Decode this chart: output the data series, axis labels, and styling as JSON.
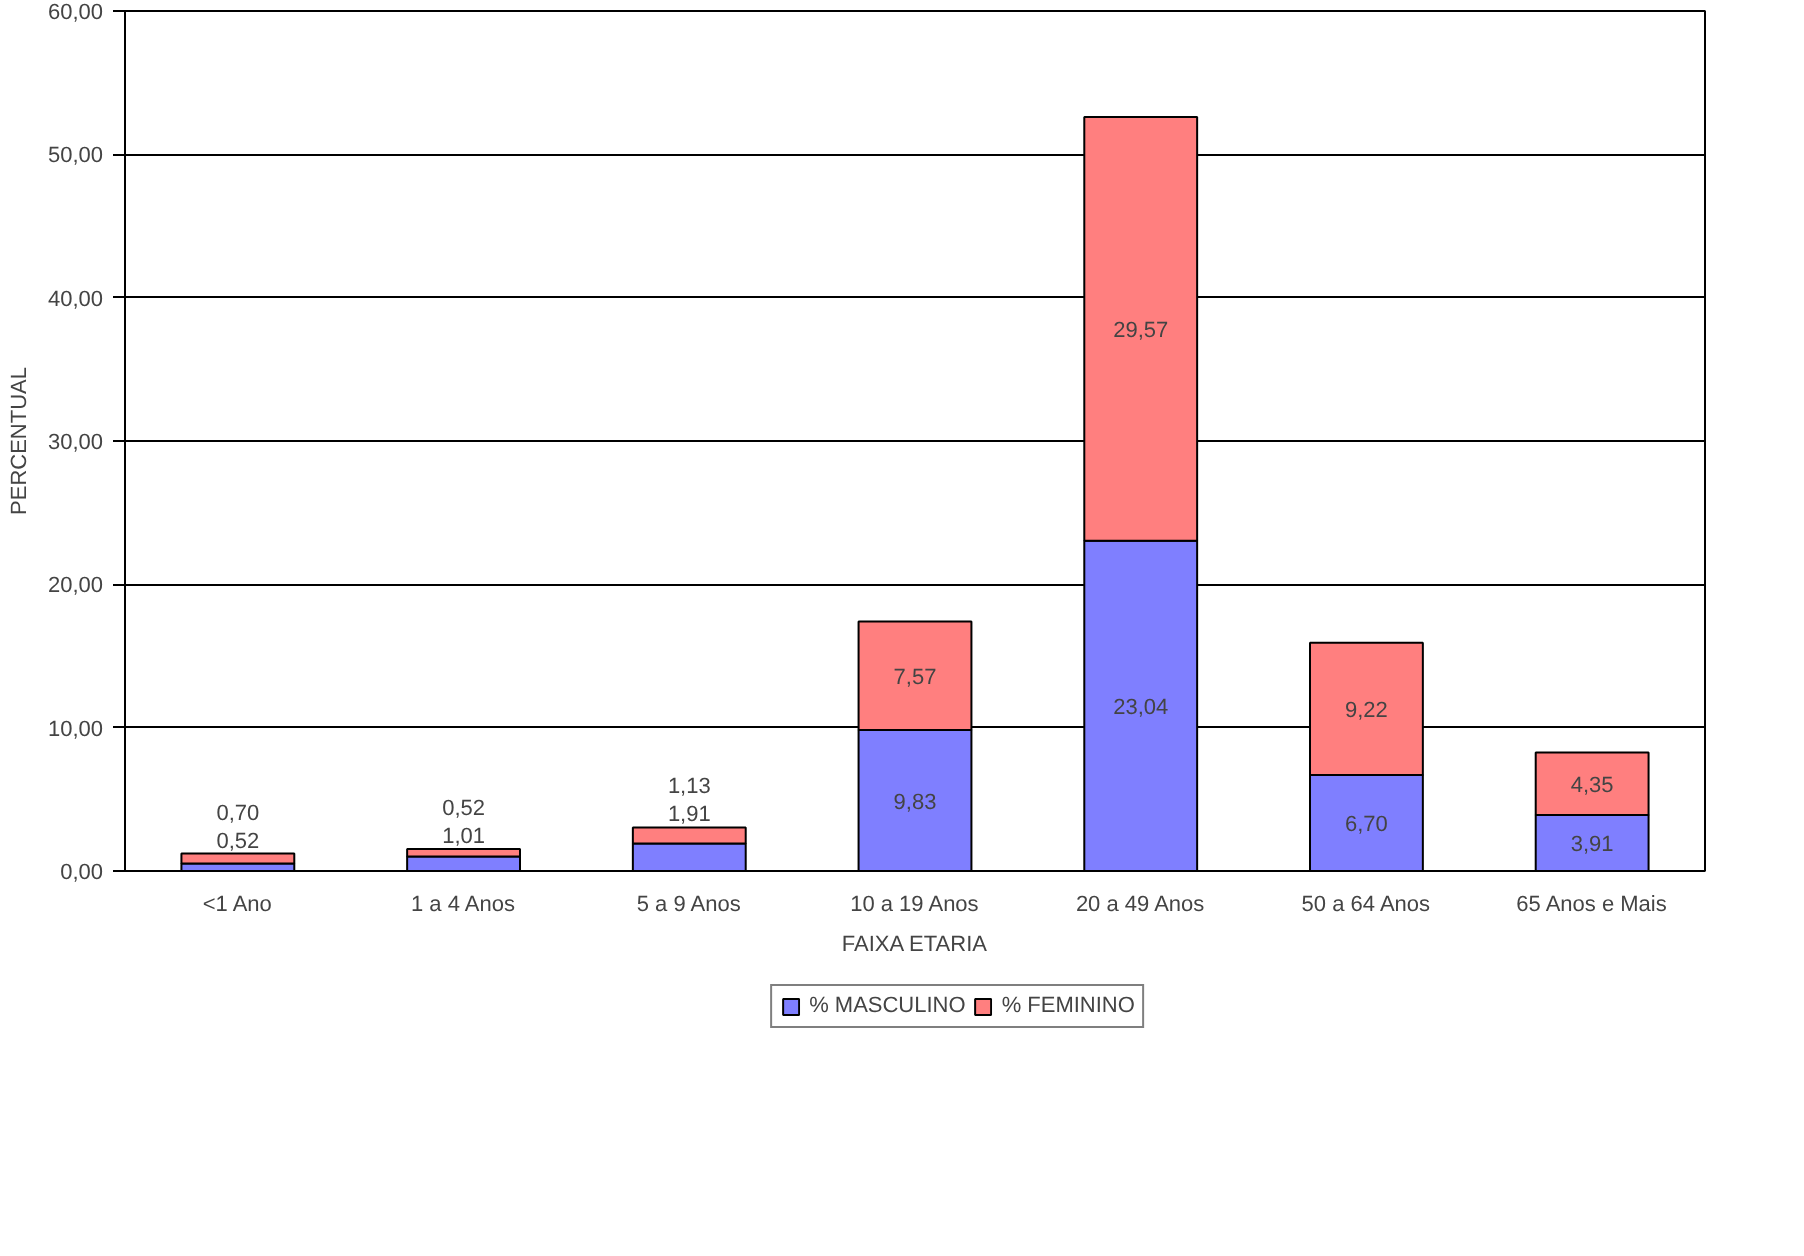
{
  "chart_data": {
    "type": "bar",
    "stacked": true,
    "xlabel": "FAIXA ETARIA",
    "ylabel": "PERCENTUAL",
    "categories": [
      "<1 Ano",
      "1 a 4 Anos",
      "5 a 9 Anos",
      "10 a 19 Anos",
      "20 a 49 Anos",
      "50 a 64 Anos",
      "65 Anos e Mais"
    ],
    "series": [
      {
        "name": "% MASCULINO",
        "color": "#7f7fff",
        "values": [
          0.52,
          1.01,
          1.91,
          9.83,
          23.04,
          6.7,
          3.91
        ],
        "value_labels": [
          "0,52",
          "1,01",
          "1,91",
          "9,83",
          "23,04",
          "6,70",
          "3,91"
        ]
      },
      {
        "name": "% FEMININO",
        "color": "#ff7f7f",
        "values": [
          0.7,
          0.52,
          1.13,
          7.57,
          29.57,
          9.22,
          4.35
        ],
        "value_labels": [
          "0,70",
          "0,52",
          "1,13",
          "7,57",
          "29,57",
          "9,22",
          "4,35"
        ]
      }
    ],
    "ylim": [
      0,
      60
    ],
    "yticks": [
      {
        "value": 0,
        "label": "0,00"
      },
      {
        "value": 10,
        "label": "10,00"
      },
      {
        "value": 20,
        "label": "20,00"
      },
      {
        "value": 30,
        "label": "30,00"
      },
      {
        "value": 40,
        "label": "40,00"
      },
      {
        "value": 50,
        "label": "50,00"
      },
      {
        "value": 60,
        "label": "60,00"
      }
    ],
    "grid": "y",
    "legend": "bottom"
  }
}
